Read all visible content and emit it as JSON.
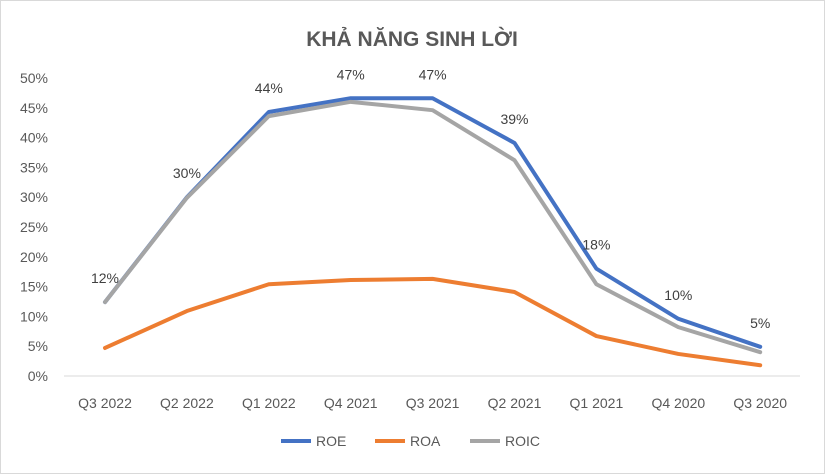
{
  "chart_data": {
    "type": "line",
    "title": "KHẢ NĂNG SINH LỜI",
    "xlabel": "",
    "ylabel": "",
    "ylim": [
      0,
      50
    ],
    "yticks": [
      "0%",
      "5%",
      "10%",
      "15%",
      "20%",
      "25%",
      "30%",
      "35%",
      "40%",
      "45%",
      "50%"
    ],
    "categories": [
      "Q3 2022",
      "Q2 2022",
      "Q1 2022",
      "Q4 2021",
      "Q3 2021",
      "Q2 2021",
      "Q1 2021",
      "Q4 2020",
      "Q3 2020"
    ],
    "series": [
      {
        "name": "ROE",
        "color": "#4472C4",
        "values": [
          12.4,
          30.0,
          44.3,
          46.6,
          46.6,
          39.1,
          18.0,
          9.6,
          4.9
        ],
        "data_labels": [
          "12%",
          "30%",
          "44%",
          "47%",
          "47%",
          "39%",
          "18%",
          "10%",
          "5%"
        ]
      },
      {
        "name": "ROA",
        "color": "#ED7D31",
        "values": [
          4.7,
          10.9,
          15.4,
          16.1,
          16.3,
          14.1,
          6.7,
          3.7,
          1.8
        ]
      },
      {
        "name": "ROIC",
        "color": "#A5A5A5",
        "values": [
          12.4,
          29.9,
          43.6,
          46.0,
          44.6,
          36.2,
          15.4,
          8.2,
          4.0
        ]
      }
    ],
    "grid": false,
    "legend": "bottom"
  }
}
